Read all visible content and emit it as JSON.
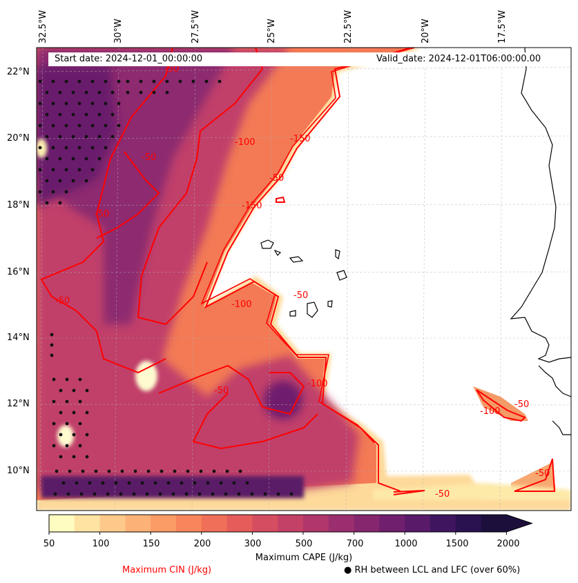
{
  "map": {
    "start_date": "Start date: 2024-12-01_00:00:00",
    "valid_date": "Valid_date: 2024-12-01T06:00:00.00",
    "lon_labels": [
      "32.5°W",
      "30°W",
      "27.5°W",
      "25°W",
      "22.5°W",
      "20°W",
      "17.5°W"
    ],
    "lat_labels": [
      "22°N",
      "20°N",
      "18°N",
      "16°N",
      "14°N",
      "12°N",
      "10°N"
    ],
    "cin_contour_labels": [
      "-50",
      "-50",
      "-50",
      "-100",
      "-150",
      "-50",
      "-150",
      "-100",
      "-50",
      "-50",
      "-100",
      "-50",
      "-100",
      "-50",
      "-50",
      "-50"
    ]
  },
  "colorbar": {
    "title": "Maximum CAPE (J/kg)",
    "ticks": [
      "50",
      "100",
      "150",
      "200",
      "300",
      "500",
      "700",
      "1000",
      "1500",
      "2000"
    ],
    "colors": [
      "#fefcc0",
      "#fee3a2",
      "#fdc98a",
      "#fcb277",
      "#fb9b66",
      "#f8855c",
      "#f06f58",
      "#e55c5a",
      "#d54d60",
      "#c34066",
      "#b0366b",
      "#9b2e6e",
      "#86266f",
      "#701f6e",
      "#581a69",
      "#3f1560",
      "#2a1150",
      "#1c0f3c"
    ]
  },
  "legend": {
    "cin_label": "Maximum CIN (J/kg)",
    "rh_label": "● RH between LCL and LFC (over 60%)",
    "cin_color": "#ff0000"
  }
}
